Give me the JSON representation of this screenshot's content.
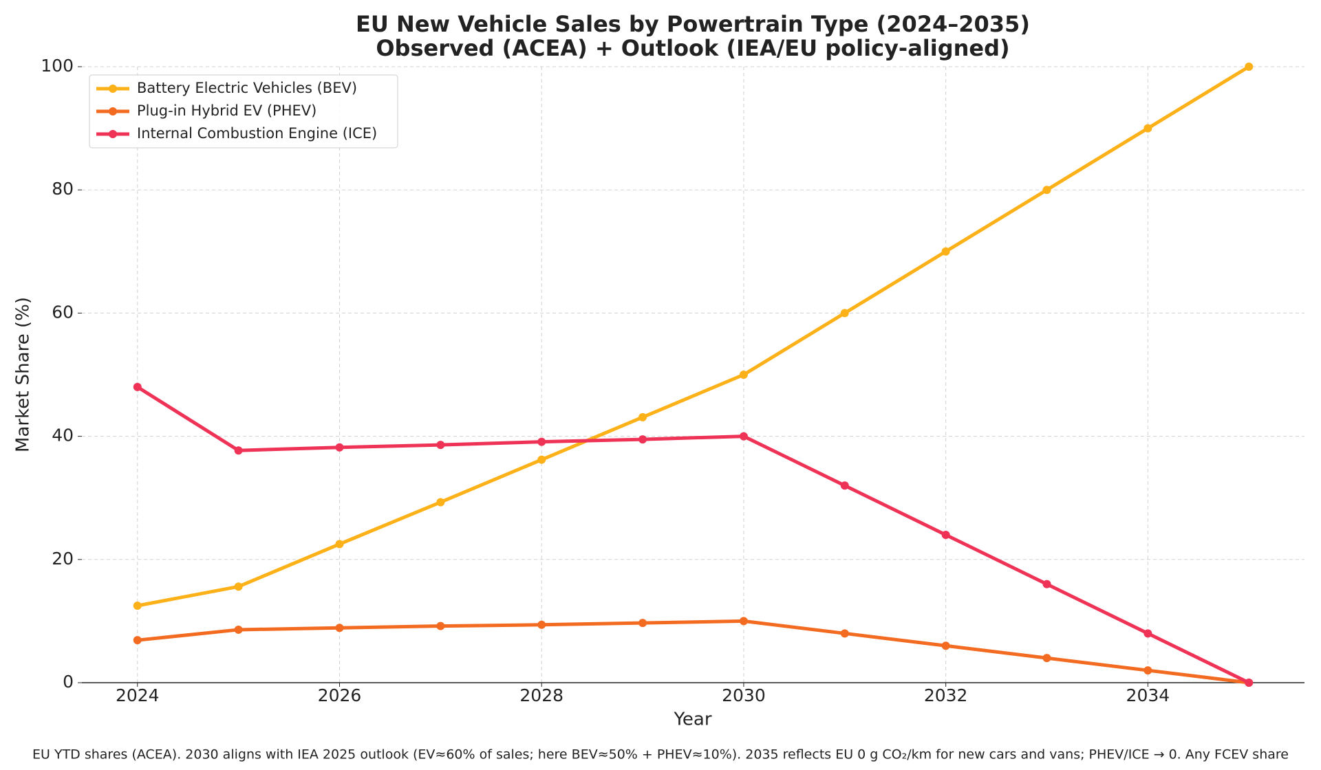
{
  "chart_data": {
    "type": "line",
    "title": "EU New Vehicle Sales by Powertrain Type (2024–2035)",
    "subtitle": "Observed (ACEA) + Outlook (IEA/EU policy-aligned)",
    "x_label": "Year",
    "y_label": "Market Share (%)",
    "footnote": "EU YTD shares (ACEA). 2030 aligns with IEA 2025 outlook (EV≈60% of sales; here BEV≈50% + PHEV≈10%). 2035 reflects EU 0 g CO₂/km for new cars and vans; PHEV/ICE → 0. Any FCEV share",
    "x": [
      2024,
      2025,
      2026,
      2027,
      2028,
      2029,
      2030,
      2031,
      2032,
      2033,
      2034,
      2035
    ],
    "series": [
      {
        "name": "Battery Electric Vehicles (BEV)",
        "color": "#fbb117",
        "values": [
          12.5,
          15.6,
          22.5,
          29.3,
          36.2,
          43.1,
          50,
          60,
          70,
          80,
          90,
          100
        ]
      },
      {
        "name": "Plug-in Hybrid EV (PHEV)",
        "color": "#f26b21",
        "values": [
          6.9,
          8.6,
          8.9,
          9.2,
          9.4,
          9.7,
          10,
          8,
          6,
          4,
          2,
          0
        ]
      },
      {
        "name": "Internal Combustion Engine (ICE)",
        "color": "#ee3356",
        "values": [
          48,
          37.7,
          38.2,
          38.6,
          39.1,
          39.5,
          40,
          32,
          24,
          16,
          8,
          0
        ]
      }
    ],
    "xlim": [
      2023.45,
      2035.55
    ],
    "ylim": [
      0,
      100
    ],
    "xticks": [
      2024,
      2026,
      2028,
      2030,
      2032,
      2034
    ],
    "yticks": [
      0,
      20,
      40,
      60,
      80,
      100
    ],
    "grid": true,
    "legend": "upper left"
  }
}
